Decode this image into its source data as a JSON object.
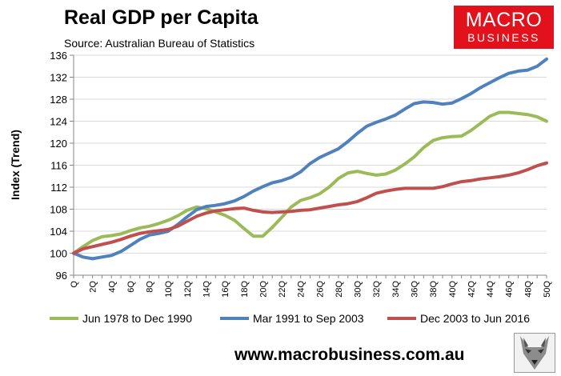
{
  "header": {
    "title": "Real GDP per Capita",
    "subtitle": "Source: Australian Bureau of Statistics"
  },
  "logo": {
    "line1": "MACRO",
    "line2": "BUSINESS"
  },
  "footer": {
    "url": "www.macrobusiness.com.au"
  },
  "colors": {
    "series1": "#9bbb59",
    "series2": "#4f81bd",
    "series3": "#c0504d",
    "grid": "#d9d9d9",
    "logo_bg": "#e3111b"
  },
  "chart_data": {
    "type": "line",
    "title": "Real GDP per Capita",
    "xlabel": "",
    "ylabel": "Index (Trend)",
    "ylim": [
      96,
      136
    ],
    "yticks": [
      96,
      100,
      104,
      108,
      112,
      116,
      120,
      124,
      128,
      132,
      136
    ],
    "x": [
      "Q",
      "1Q",
      "2Q",
      "3Q",
      "4Q",
      "5Q",
      "6Q",
      "7Q",
      "8Q",
      "9Q",
      "10Q",
      "11Q",
      "12Q",
      "13Q",
      "14Q",
      "15Q",
      "16Q",
      "17Q",
      "18Q",
      "19Q",
      "20Q",
      "21Q",
      "22Q",
      "23Q",
      "24Q",
      "25Q",
      "26Q",
      "27Q",
      "28Q",
      "29Q",
      "30Q",
      "31Q",
      "32Q",
      "33Q",
      "34Q",
      "35Q",
      "36Q",
      "37Q",
      "38Q",
      "39Q",
      "40Q",
      "41Q",
      "42Q",
      "43Q",
      "44Q",
      "45Q",
      "46Q",
      "47Q",
      "48Q",
      "49Q",
      "50Q"
    ],
    "xtick_labels": [
      "Q",
      "2Q",
      "4Q",
      "6Q",
      "8Q",
      "10Q",
      "12Q",
      "14Q",
      "16Q",
      "18Q",
      "20Q",
      "22Q",
      "24Q",
      "26Q",
      "28Q",
      "30Q",
      "32Q",
      "34Q",
      "36Q",
      "38Q",
      "40Q",
      "42Q",
      "44Q",
      "46Q",
      "48Q",
      "50Q"
    ],
    "grid": true,
    "legend_position": "bottom",
    "series": [
      {
        "name": "Jun 1978 to Dec 1990",
        "values": [
          100,
          101.2,
          102.3,
          103,
          103.2,
          103.5,
          104.1,
          104.6,
          104.9,
          105.4,
          106,
          106.8,
          107.8,
          108.4,
          108.1,
          107.5,
          106.9,
          106,
          104.5,
          103.1,
          103.1,
          104.7,
          106.5,
          108.4,
          109.6,
          110.1,
          110.8,
          112,
          113.6,
          114.6,
          114.9,
          114.5,
          114.2,
          114.4,
          115.1,
          116.2,
          117.5,
          119.2,
          120.5,
          121,
          121.2,
          121.3,
          122.3,
          123.6,
          124.9,
          125.6,
          125.6,
          125.4,
          125.2,
          124.8,
          124
        ]
      },
      {
        "name": "Mar 1991 to Sep 2003",
        "values": [
          100,
          99.3,
          99,
          99.3,
          99.6,
          100.3,
          101.4,
          102.5,
          103.3,
          103.6,
          104,
          105.2,
          106.6,
          107.9,
          108.5,
          108.7,
          109,
          109.5,
          110.3,
          111.3,
          112.1,
          112.8,
          113.2,
          113.8,
          114.8,
          116.3,
          117.4,
          118.2,
          119,
          120.3,
          121.8,
          123.1,
          123.8,
          124.4,
          125.1,
          126.2,
          127.2,
          127.5,
          127.4,
          127.1,
          127.3,
          128.1,
          129,
          130.1,
          131,
          131.9,
          132.7,
          133.1,
          133.3,
          134,
          135.3
        ]
      },
      {
        "name": "Dec 2003 to Jun 2016",
        "values": [
          100,
          100.8,
          101.2,
          101.6,
          102,
          102.5,
          103.1,
          103.6,
          103.9,
          104.1,
          104.3,
          104.9,
          105.8,
          106.7,
          107.3,
          107.7,
          107.9,
          108.1,
          108.2,
          107.8,
          107.5,
          107.4,
          107.5,
          107.6,
          107.8,
          107.9,
          108.2,
          108.5,
          108.8,
          109,
          109.4,
          110.1,
          110.9,
          111.3,
          111.6,
          111.8,
          111.8,
          111.8,
          111.8,
          112.1,
          112.6,
          113,
          113.2,
          113.5,
          113.7,
          113.9,
          114.2,
          114.6,
          115.2,
          115.9,
          116.4
        ]
      }
    ]
  }
}
